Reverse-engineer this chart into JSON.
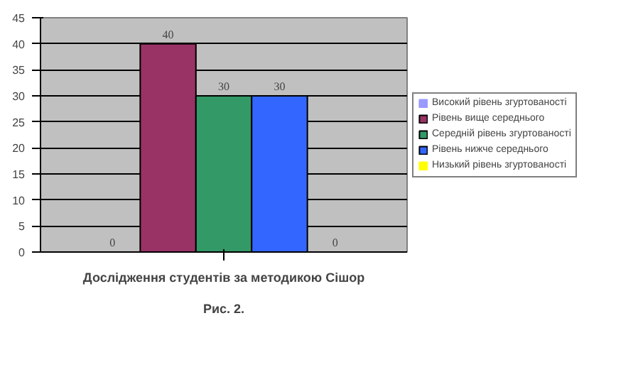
{
  "chart_data": {
    "type": "bar",
    "title": "Рис. 2.",
    "subtitle": "Дослідження студентів за методикою Сішор",
    "categories": [
      null
    ],
    "series": [
      {
        "name": "Високий рівень згуртованості",
        "color": "#9999ff",
        "values": [
          0
        ]
      },
      {
        "name": "Рівень вище середнього",
        "color": "#993366",
        "values": [
          40
        ]
      },
      {
        "name": "Середній рівень згуртованості",
        "color": "#339966",
        "values": [
          30
        ]
      },
      {
        "name": "Рівень нижче середнього",
        "color": "#3366ff",
        "values": [
          30
        ]
      },
      {
        "name": "Низький рівень згуртованості",
        "color": "#ffff00",
        "values": [
          0
        ]
      }
    ],
    "ylim": [
      0,
      45
    ],
    "yticks": [
      0,
      5,
      10,
      15,
      20,
      25,
      30,
      35,
      40,
      45
    ],
    "grid": "y",
    "legend": "right",
    "data_labels": true
  }
}
